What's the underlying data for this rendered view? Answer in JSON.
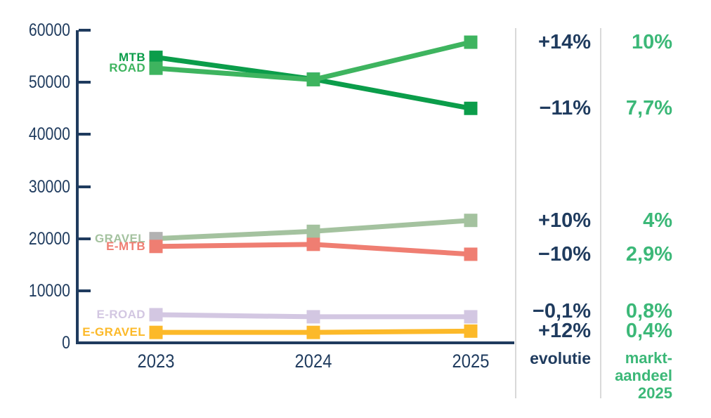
{
  "chart_data": {
    "type": "line",
    "title": "",
    "xlabel": "",
    "ylabel": "",
    "x": [
      "2023",
      "2024",
      "2025"
    ],
    "ylim": [
      0,
      60000
    ],
    "yticks": [
      0,
      10000,
      20000,
      30000,
      40000,
      50000,
      60000
    ],
    "grid": false,
    "legend_position": "left-of-first-point",
    "series": [
      {
        "name": "GRAVEL",
        "color": "#a4c29f",
        "marker_colors": [
          "#b2b2b2",
          null,
          null
        ],
        "values": [
          20000,
          21400,
          23500
        ],
        "evolution": "+10%",
        "market_share_2025": "4%"
      },
      {
        "name": "E-MTB",
        "color": "#ef7e72",
        "values": [
          18500,
          18900,
          17000
        ],
        "evolution": "−10%",
        "market_share_2025": "2,9%"
      },
      {
        "name": "E-ROAD",
        "color": "#d3c7e2",
        "values": [
          5400,
          5000,
          5000
        ],
        "evolution": "−0,1%",
        "market_share_2025": "0,8%"
      },
      {
        "name": "E-GRAVEL",
        "color": "#fcb929",
        "values": [
          2000,
          2000,
          2250
        ],
        "evolution": "+12%",
        "market_share_2025": "0,4%"
      },
      {
        "name": "MTB",
        "color": "#0b9d4a",
        "values": [
          54800,
          50600,
          45000
        ],
        "evolution": "−11%",
        "market_share_2025": "7,7%"
      },
      {
        "name": "ROAD",
        "color": "#3eb45f",
        "values": [
          52700,
          50500,
          57700
        ],
        "evolution": "+14%",
        "market_share_2025": "10%"
      }
    ],
    "columns": {
      "evolution_header": "evolutie",
      "market_share_header_lines": [
        "markt-",
        "aandeel",
        "2025"
      ]
    },
    "colors": {
      "axis": "#1f3b5e",
      "evolution_text": "#1f3b5e",
      "market_share_text": "#3cb878",
      "divider": "#d9d9d9",
      "gravel_2023_marker": "#b2b2b2"
    }
  }
}
